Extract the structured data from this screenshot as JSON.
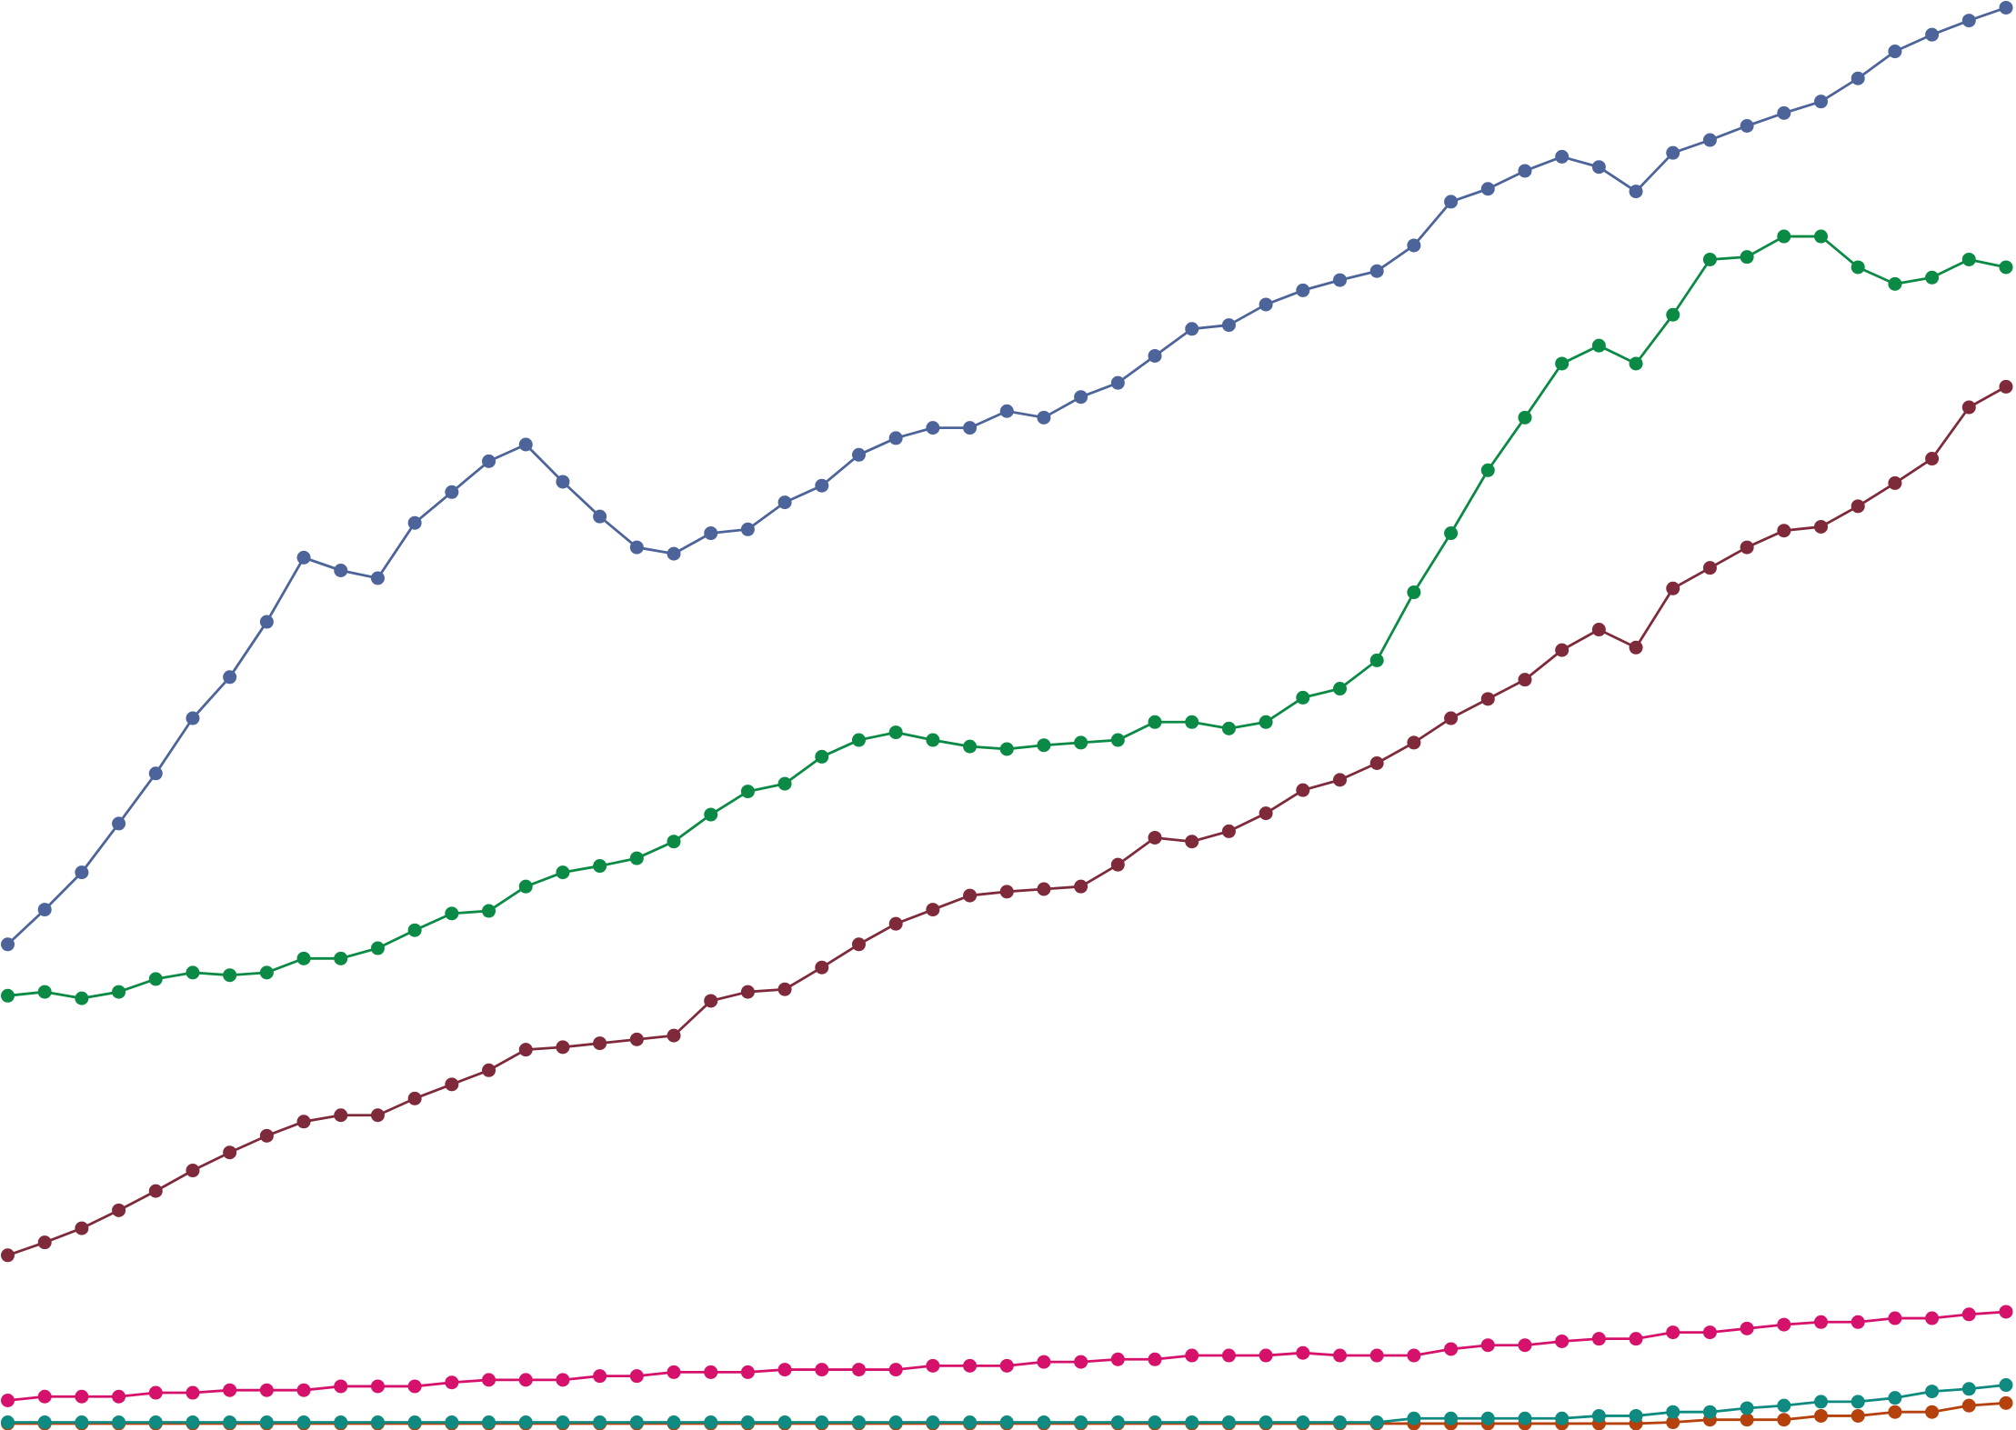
{
  "chart_data": {
    "type": "line",
    "x": [
      0,
      1,
      2,
      3,
      4,
      5,
      6,
      7,
      8,
      9,
      10,
      11,
      12,
      13,
      14,
      15,
      16,
      17,
      18,
      19,
      20,
      21,
      22,
      23,
      24,
      25,
      26,
      27,
      28,
      29,
      30,
      31,
      32,
      33,
      34,
      35,
      36,
      37,
      38,
      39,
      40,
      41,
      42,
      43,
      44,
      45,
      46,
      47,
      48,
      49,
      50,
      51,
      52,
      53,
      54
    ],
    "xlim": [
      0,
      54
    ],
    "ylim": [
      0,
      1113
    ],
    "grid": false,
    "series": [
      {
        "color": "#b5420c",
        "values": [
          5,
          5,
          5,
          5,
          5,
          5,
          5,
          5,
          5,
          5,
          5,
          5,
          5,
          5,
          5,
          5,
          5,
          5,
          5,
          5,
          5,
          5,
          5,
          5,
          5,
          5,
          5,
          5,
          5,
          5,
          5,
          5,
          5,
          5,
          5,
          5,
          5,
          5,
          5,
          5,
          5,
          5,
          5,
          5,
          5,
          6,
          8,
          8,
          8,
          11,
          11,
          14,
          14,
          19,
          21
        ]
      },
      {
        "color": "#0e8a80",
        "values": [
          6,
          6,
          6,
          6,
          6,
          6,
          6,
          6,
          6,
          6,
          6,
          6,
          6,
          6,
          6,
          6,
          6,
          6,
          6,
          6,
          6,
          6,
          6,
          6,
          6,
          6,
          6,
          6,
          6,
          6,
          6,
          6,
          6,
          6,
          6,
          6,
          6,
          6,
          9,
          9,
          9,
          9,
          9,
          11,
          11,
          14,
          14,
          17,
          19,
          22,
          22,
          25,
          30,
          32,
          35
        ]
      },
      {
        "color": "#d6116b",
        "values": [
          23,
          26,
          26,
          26,
          29,
          29,
          31,
          31,
          31,
          34,
          34,
          34,
          37,
          39,
          39,
          39,
          42,
          42,
          45,
          45,
          45,
          47,
          47,
          47,
          47,
          50,
          50,
          50,
          53,
          53,
          55,
          55,
          58,
          58,
          58,
          60,
          58,
          58,
          58,
          63,
          66,
          66,
          69,
          71,
          71,
          76,
          76,
          79,
          82,
          84,
          84,
          87,
          87,
          90,
          92
        ]
      },
      {
        "color": "#7f2a3a",
        "values": [
          136,
          146,
          157,
          171,
          186,
          202,
          216,
          229,
          240,
          245,
          245,
          258,
          269,
          280,
          296,
          298,
          301,
          304,
          307,
          334,
          341,
          343,
          360,
          378,
          394,
          405,
          416,
          419,
          421,
          423,
          440,
          461,
          458,
          466,
          480,
          498,
          506,
          519,
          535,
          554,
          569,
          584,
          607,
          623,
          609,
          655,
          671,
          687,
          700,
          703,
          719,
          737,
          756,
          796,
          812
        ]
      },
      {
        "color": "#0a8a45",
        "values": [
          338,
          341,
          336,
          341,
          351,
          356,
          354,
          356,
          367,
          367,
          375,
          389,
          402,
          404,
          423,
          434,
          439,
          445,
          458,
          479,
          497,
          503,
          524,
          537,
          543,
          537,
          532,
          530,
          533,
          535,
          537,
          551,
          551,
          546,
          551,
          570,
          577,
          599,
          652,
          698,
          747,
          788,
          830,
          844,
          830,
          868,
          911,
          913,
          929,
          929,
          905,
          892,
          897,
          911,
          905
        ]
      },
      {
        "color": "#4c649a",
        "values": [
          378,
          405,
          434,
          472,
          511,
          554,
          586,
          629,
          679,
          669,
          663,
          706,
          730,
          754,
          767,
          738,
          711,
          687,
          682,
          698,
          701,
          722,
          735,
          759,
          772,
          780,
          780,
          793,
          788,
          804,
          815,
          836,
          857,
          860,
          876,
          887,
          895,
          902,
          922,
          956,
          966,
          980,
          991,
          983,
          964,
          994,
          1004,
          1015,
          1025,
          1034,
          1052,
          1073,
          1086,
          1097,
          1107
        ]
      }
    ]
  }
}
